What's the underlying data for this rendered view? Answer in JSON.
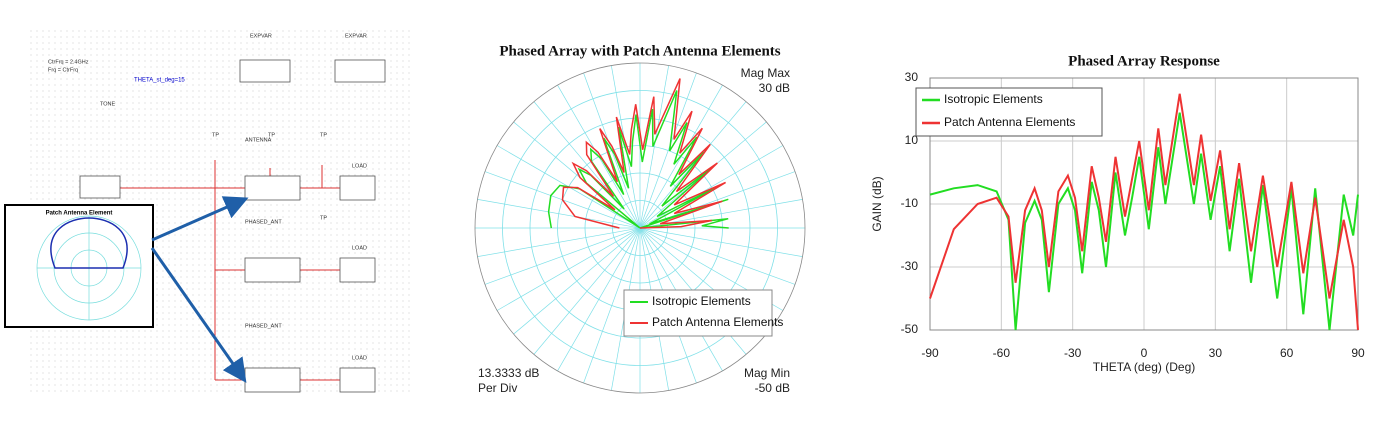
{
  "schematic": {
    "labels": [
      "CtrFrq = 2.4GHz",
      "Frq = CtrFrq",
      "THETA_st_deg=15",
      "EXPVAR",
      "EXPVAR",
      "TONE",
      "ANTENNA",
      "PHASED_ANT",
      "PHASED_ANT",
      "LOAD",
      "LOAD",
      "LOAD",
      "TP",
      "TP",
      "TP",
      "TP"
    ],
    "inset_title": "Patch Antenna Element"
  },
  "chart_data": [
    {
      "type": "polar",
      "title": "Phased Array with Patch Antenna Elements",
      "mag_max_label": "Mag Max",
      "mag_min_label": "Mag Min",
      "per_div_unit": "Per Div",
      "per_div": {
        "value": 13.3333,
        "label": "13.3333 dB"
      },
      "rlim": [
        {
          "value": -50,
          "label": "-50 dB"
        },
        {
          "value": 30,
          "label": "30 dB"
        }
      ],
      "rticks": [
        -36.6667,
        -23.3333,
        -10,
        3.3333,
        16.6667,
        30
      ],
      "theta": [
        -90,
        -80,
        -70,
        -62,
        -57,
        -54,
        -50,
        -46,
        -43,
        -40,
        -36,
        -32,
        -29,
        -26,
        -22,
        -19,
        -16,
        -12,
        -8,
        -5,
        -2,
        2,
        6,
        9,
        15,
        21,
        24,
        28,
        32,
        36,
        40,
        45,
        50,
        56,
        62,
        67,
        72,
        78,
        84,
        88,
        90
      ],
      "series": [
        {
          "name": "Isotropic Elements",
          "color": "#22dd22",
          "values": [
            -7,
            -5,
            -4,
            -6,
            -15,
            -50,
            -16,
            -9,
            -15,
            -38,
            -10,
            -5,
            -12,
            -32,
            -3,
            -12,
            -30,
            0,
            -20,
            -8,
            5,
            -18,
            8,
            -10,
            19,
            -10,
            6,
            -15,
            2,
            -25,
            -2,
            -35,
            -4,
            -40,
            -5,
            -45,
            -5,
            -50,
            -7,
            -20,
            -7
          ]
        },
        {
          "name": "Patch Antenna Elements",
          "color": "#ee3333",
          "values": [
            -40,
            -18,
            -10,
            -8,
            -14,
            -35,
            -12,
            -5,
            -12,
            -30,
            -6,
            -1,
            -8,
            -25,
            2,
            -8,
            -22,
            5,
            -14,
            -2,
            10,
            -12,
            14,
            -4,
            25,
            -4,
            12,
            -9,
            7,
            -18,
            3,
            -25,
            -1,
            -30,
            -3,
            -32,
            -8,
            -40,
            -15,
            -30,
            -50
          ]
        }
      ]
    },
    {
      "type": "line",
      "title": "Phased Array Response",
      "xlabel": "THETA (deg) (Deg)",
      "ylabel": "GAIN (dB)",
      "x": [
        -90,
        -80,
        -70,
        -62,
        -57,
        -54,
        -50,
        -46,
        -43,
        -40,
        -36,
        -32,
        -29,
        -26,
        -22,
        -19,
        -16,
        -12,
        -8,
        -5,
        -2,
        2,
        6,
        9,
        15,
        21,
        24,
        28,
        32,
        36,
        40,
        45,
        50,
        56,
        62,
        67,
        72,
        78,
        84,
        88,
        90
      ],
      "xlim": [
        -90,
        90
      ],
      "xticks": [
        -90,
        -60,
        -30,
        0,
        30,
        60,
        90
      ],
      "ylim": [
        -50,
        30
      ],
      "yticks": [
        30,
        10,
        -10,
        -30,
        -50
      ],
      "grid": true,
      "legend": "upper left",
      "series": [
        {
          "name": "Isotropic Elements",
          "color": "#22dd22",
          "values": [
            -7,
            -5,
            -4,
            -6,
            -15,
            -50,
            -16,
            -9,
            -15,
            -38,
            -10,
            -5,
            -12,
            -32,
            -3,
            -12,
            -30,
            0,
            -20,
            -8,
            5,
            -18,
            8,
            -10,
            19,
            -10,
            6,
            -15,
            2,
            -25,
            -2,
            -35,
            -4,
            -40,
            -5,
            -45,
            -5,
            -50,
            -7,
            -20,
            -7
          ]
        },
        {
          "name": "Patch Antenna Elements",
          "color": "#ee3333",
          "values": [
            -40,
            -18,
            -10,
            -8,
            -14,
            -35,
            -12,
            -5,
            -12,
            -30,
            -6,
            -1,
            -8,
            -25,
            2,
            -8,
            -22,
            5,
            -14,
            -2,
            10,
            -12,
            14,
            -4,
            25,
            -4,
            12,
            -9,
            7,
            -18,
            3,
            -25,
            -1,
            -30,
            -3,
            -32,
            -8,
            -40,
            -15,
            -30,
            -50
          ]
        }
      ]
    }
  ]
}
